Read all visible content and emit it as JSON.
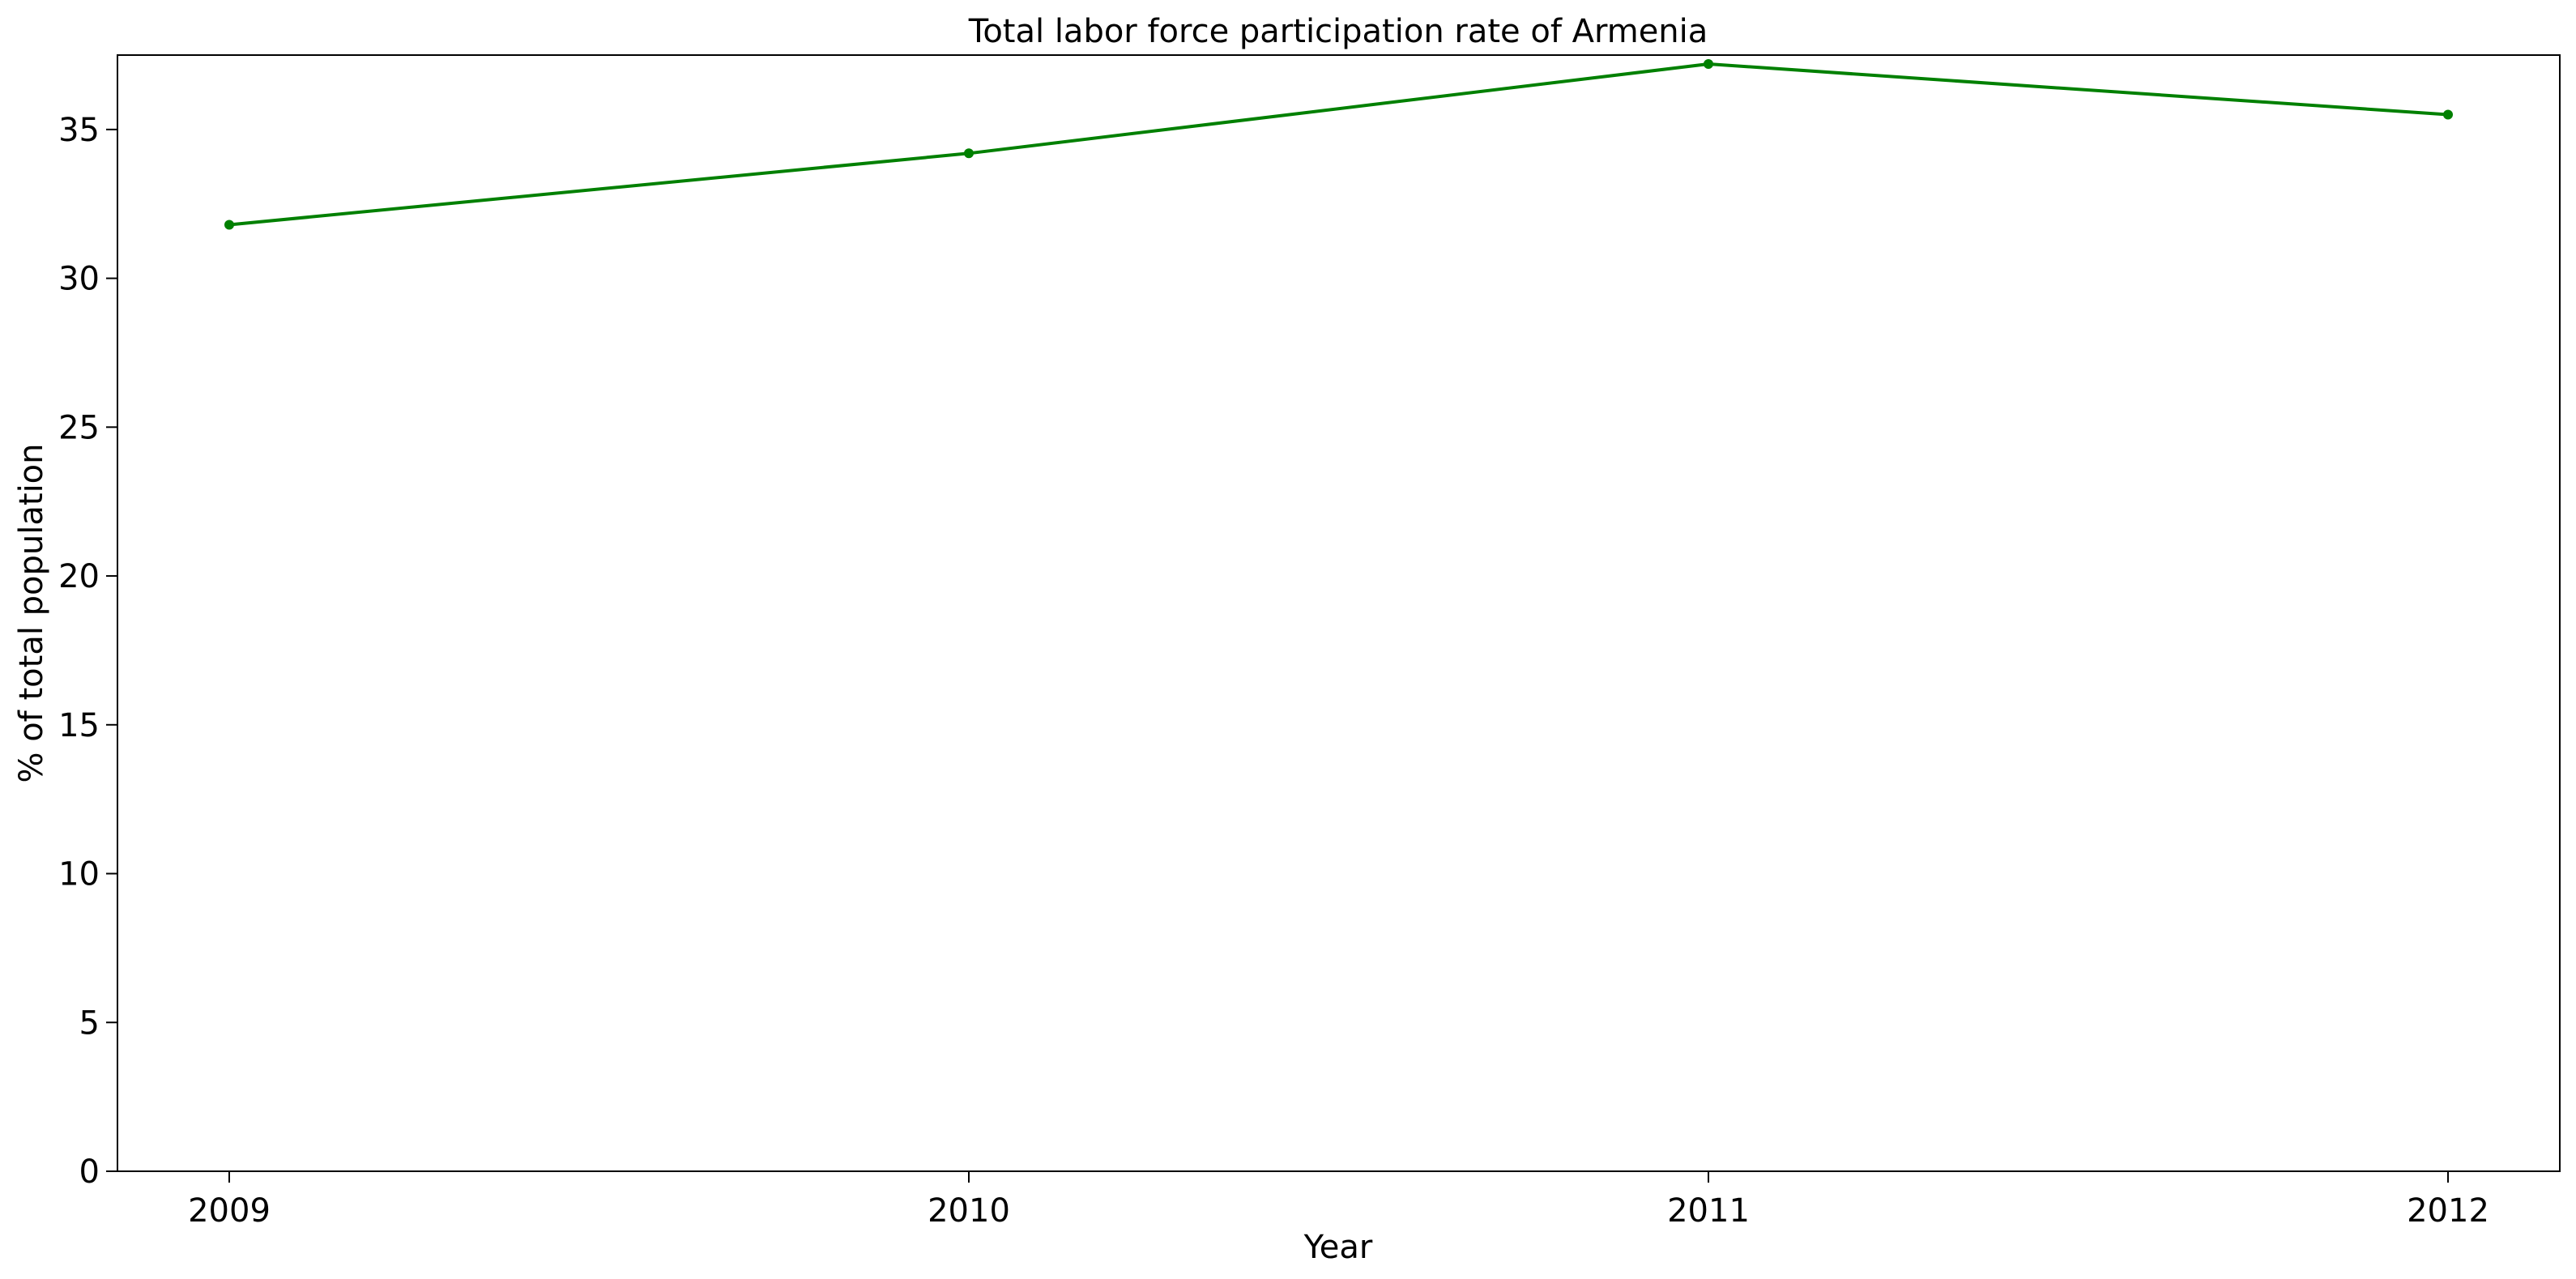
{
  "chart_data": {
    "type": "line",
    "title": "Total labor force participation rate of Armenia",
    "xlabel": "Year",
    "ylabel": "% of total population",
    "x": [
      "2009",
      "2010",
      "2011",
      "2012"
    ],
    "series": [
      {
        "values": [
          31.8,
          34.2,
          37.2,
          35.5
        ],
        "color": "#008000",
        "marker": "circle"
      }
    ],
    "yticks": [
      0,
      5,
      10,
      15,
      20,
      25,
      30,
      35
    ],
    "ylim": [
      0,
      37.5
    ],
    "grid": false,
    "legend": "none"
  }
}
